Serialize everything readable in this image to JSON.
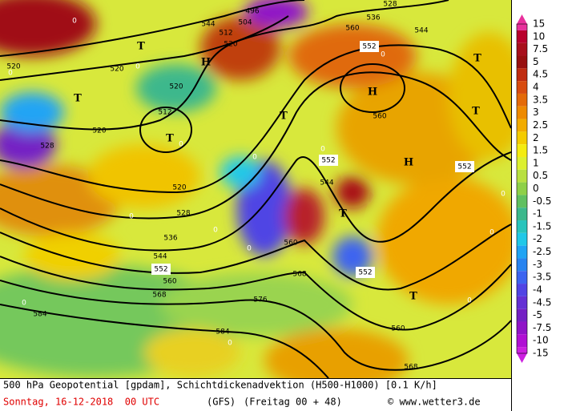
{
  "map": {
    "contour_labels": [
      {
        "text": "496",
        "highlight": false
      },
      {
        "text": "504",
        "highlight": false
      },
      {
        "text": "512",
        "highlight": false
      },
      {
        "text": "520",
        "highlight": false
      },
      {
        "text": "528",
        "highlight": false
      },
      {
        "text": "536",
        "highlight": false
      },
      {
        "text": "544",
        "highlight": false
      },
      {
        "text": "552",
        "highlight": true
      },
      {
        "text": "520",
        "highlight": false
      },
      {
        "text": "520",
        "highlight": false
      },
      {
        "text": "520",
        "highlight": false
      },
      {
        "text": "520",
        "highlight": false
      },
      {
        "text": "512",
        "highlight": false
      },
      {
        "text": "528",
        "highlight": false
      },
      {
        "text": "520",
        "highlight": false
      },
      {
        "text": "528",
        "highlight": false
      },
      {
        "text": "536",
        "highlight": false
      },
      {
        "text": "544",
        "highlight": false
      },
      {
        "text": "552",
        "highlight": true
      },
      {
        "text": "560",
        "highlight": false
      },
      {
        "text": "568",
        "highlight": false
      },
      {
        "text": "576",
        "highlight": false
      },
      {
        "text": "584",
        "highlight": false
      },
      {
        "text": "584",
        "highlight": false
      },
      {
        "text": "552",
        "highlight": true
      },
      {
        "text": "544",
        "highlight": false
      },
      {
        "text": "560",
        "highlight": false
      },
      {
        "text": "552",
        "highlight": true
      },
      {
        "text": "560",
        "highlight": false
      },
      {
        "text": "568",
        "highlight": false
      },
      {
        "text": "552",
        "highlight": true
      },
      {
        "text": "560",
        "highlight": false
      },
      {
        "text": "568",
        "highlight": false
      },
      {
        "text": "544",
        "highlight": false
      },
      {
        "text": "560",
        "highlight": false
      }
    ],
    "pressure_centers": [
      "T",
      "H",
      "T",
      "T",
      "T",
      "H",
      "H",
      "T",
      "T",
      "T",
      "T"
    ],
    "zero_labels": [
      "0",
      "0",
      "0",
      "0",
      "0",
      "0",
      "0",
      "0",
      "0",
      "0",
      "0",
      "0",
      "0",
      "0",
      "0"
    ]
  },
  "colorbar": {
    "levels": [
      15,
      10,
      7.5,
      5,
      4.5,
      4,
      3.5,
      3,
      2.5,
      2,
      1.5,
      1,
      0.5,
      0,
      -0.5,
      -1,
      -1.5,
      -2,
      -2.5,
      -3,
      -3.5,
      -4,
      -4.5,
      -5,
      -7.5,
      -10,
      -15
    ],
    "colors": [
      "#e8309c",
      "#b8002c",
      "#a8101c",
      "#981010",
      "#c02c10",
      "#d84c10",
      "#e46a08",
      "#ee8a00",
      "#f2ac00",
      "#f4cc00",
      "#f4ec10",
      "#dcf030",
      "#b8e040",
      "#8ed048",
      "#60c060",
      "#3cb88c",
      "#28c4bc",
      "#20c8e8",
      "#20a4f4",
      "#2884f0",
      "#3c64f0",
      "#5044e4",
      "#6430d4",
      "#7420c4",
      "#9014c8",
      "#b010d4",
      "#cc20e0"
    ]
  },
  "footer": {
    "description": "500 hPa Geopotential [gpdam], Schichtdickenadvektion (H500-H1000) [0.1 K/h]",
    "date": "Sonntag, 16-12-2018  00 UTC",
    "model": "(GFS)",
    "forecast": "(Freitag 00 + 48)",
    "credit": "© www.wetter3.de"
  }
}
